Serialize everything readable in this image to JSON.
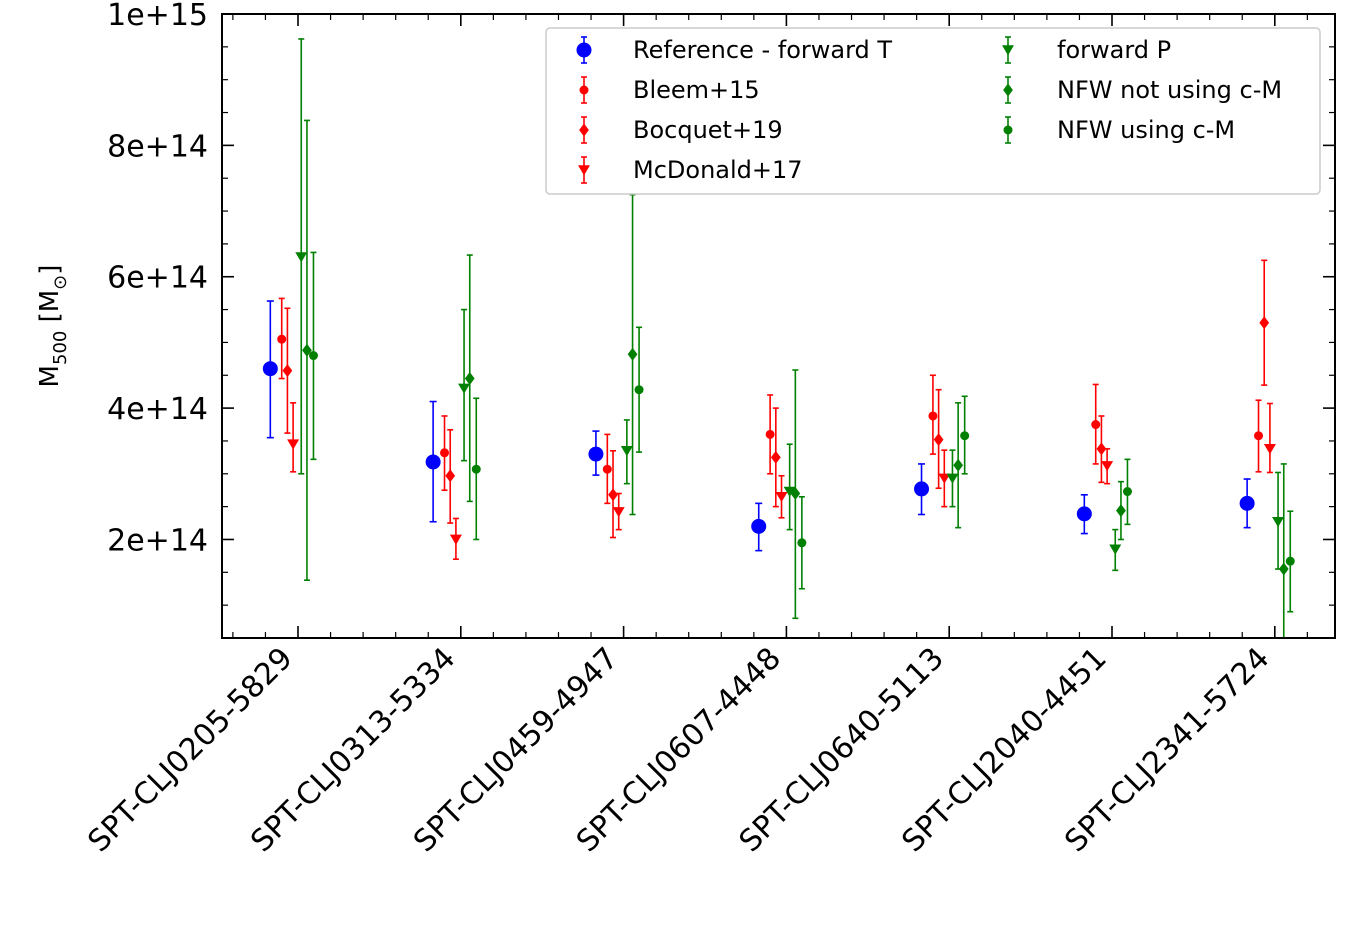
{
  "chart_data": {
    "type": "scatter",
    "ylabel": {
      "main": "M",
      "sub": "500",
      "unit_open": " [M",
      "unit_sub": "⊙",
      "unit_close": "]"
    },
    "ylim": [
      50000000000000,
      1000000000000000
    ],
    "yticks": [
      200000000000000,
      400000000000000,
      600000000000000,
      800000000000000,
      1000000000000000
    ],
    "ytick_labels": [
      "2e+14",
      "4e+14",
      "6e+14",
      "8e+14",
      "1e+15"
    ],
    "categories": [
      "SPT-CLJ0205-5829",
      "SPT-CLJ0313-5334",
      "SPT-CLJ0459-4947",
      "SPT-CLJ0607-4448",
      "SPT-CLJ0640-5113",
      "SPT-CLJ2040-4451",
      "SPT-CLJ2341-5724"
    ],
    "legend_position": "top-right",
    "series": [
      {
        "name": "Reference - forward T",
        "color": "#0000ff",
        "marker": "circle-large",
        "offset": -0.17,
        "values": [
          460000000000000.0,
          318000000000000.0,
          330000000000000.0,
          220000000000000.0,
          277000000000000.0,
          239000000000000.0,
          255000000000000.0
        ],
        "lower": [
          355000000000000.0,
          227000000000000.0,
          298000000000000.0,
          183000000000000.0,
          238000000000000.0,
          209000000000000.0,
          218000000000000.0
        ],
        "upper": [
          563000000000000.0,
          410000000000000.0,
          365000000000000.0,
          255000000000000.0,
          315000000000000.0,
          268000000000000.0,
          292000000000000.0
        ]
      },
      {
        "name": "Bleem+15",
        "color": "#ff0000",
        "marker": "circle",
        "offset": -0.1,
        "values": [
          505000000000000.0,
          332000000000000.0,
          307000000000000.0,
          360000000000000.0,
          388000000000000.0,
          375000000000000.0,
          358000000000000.0
        ],
        "lower": [
          445000000000000.0,
          275000000000000.0,
          255000000000000.0,
          300000000000000.0,
          330000000000000.0,
          315000000000000.0,
          303000000000000.0
        ],
        "upper": [
          567000000000000.0,
          388000000000000.0,
          360000000000000.0,
          420000000000000.0,
          450000000000000.0,
          436000000000000.0,
          412000000000000.0
        ]
      },
      {
        "name": "Bocquet+19",
        "color": "#ff0000",
        "marker": "diamond",
        "offset": -0.065,
        "values": [
          457000000000000.0,
          297000000000000.0,
          268000000000000.0,
          325000000000000.0,
          352000000000000.0,
          338000000000000.0,
          530000000000000.0
        ],
        "lower": [
          362000000000000.0,
          225000000000000.0,
          203000000000000.0,
          250000000000000.0,
          278000000000000.0,
          287000000000000.0,
          435000000000000.0
        ],
        "upper": [
          552000000000000.0,
          367000000000000.0,
          335000000000000.0,
          400000000000000.0,
          428000000000000.0,
          388000000000000.0,
          625000000000000.0
        ]
      },
      {
        "name": "McDonald+17",
        "color": "#ff0000",
        "marker": "triangle-down",
        "offset": -0.03,
        "values": [
          345000000000000.0,
          200000000000000.0,
          242000000000000.0,
          265000000000000.0,
          293000000000000.0,
          312000000000000.0,
          338000000000000.0
        ],
        "lower": [
          303000000000000.0,
          170000000000000.0,
          215000000000000.0,
          233000000000000.0,
          250000000000000.0,
          285000000000000.0,
          302000000000000.0
        ],
        "upper": [
          408000000000000.0,
          232000000000000.0,
          270000000000000.0,
          297000000000000.0,
          336000000000000.0,
          338000000000000.0,
          407000000000000.0
        ]
      },
      {
        "name": "forward P",
        "color": "#008000",
        "marker": "triangle-down",
        "offset": 0.02,
        "values": [
          630000000000000.0,
          430000000000000.0,
          335000000000000.0,
          273000000000000.0,
          293000000000000.0,
          185000000000000.0,
          227000000000000.0
        ],
        "lower": [
          300000000000000.0,
          320000000000000.0,
          285000000000000.0,
          215000000000000.0,
          250000000000000.0,
          153000000000000.0,
          155000000000000.0
        ],
        "upper": [
          962000000000000.0,
          550000000000000.0,
          382000000000000.0,
          345000000000000.0,
          336000000000000.0,
          215000000000000.0,
          302000000000000.0
        ]
      },
      {
        "name": "NFW not using c-M",
        "color": "#008000",
        "marker": "diamond",
        "offset": 0.055,
        "values": [
          488000000000000.0,
          445000000000000.0,
          482000000000000.0,
          270000000000000.0,
          313000000000000.0,
          244000000000000.0,
          155000000000000.0
        ],
        "lower": [
          138000000000000.0,
          258000000000000.0,
          238000000000000.0,
          80000000000000.0,
          218000000000000.0,
          200000000000000.0,
          50000000000000.0
        ],
        "upper": [
          838000000000000.0,
          633000000000000.0,
          725000000000000.0,
          458000000000000.0,
          408000000000000.0,
          288000000000000.0,
          315000000000000.0
        ]
      },
      {
        "name": "NFW using c-M",
        "color": "#008000",
        "marker": "circle",
        "offset": 0.095,
        "values": [
          480000000000000.0,
          307000000000000.0,
          428000000000000.0,
          195000000000000.0,
          358000000000000.0,
          273000000000000.0,
          167000000000000.0
        ],
        "lower": [
          322000000000000.0,
          200000000000000.0,
          333000000000000.0,
          125000000000000.0,
          300000000000000.0,
          223000000000000.0,
          90000000000000.0
        ],
        "upper": [
          637000000000000.0,
          415000000000000.0,
          523000000000000.0,
          265000000000000.0,
          418000000000000.0,
          322000000000000.0,
          243000000000000.0
        ]
      }
    ]
  }
}
